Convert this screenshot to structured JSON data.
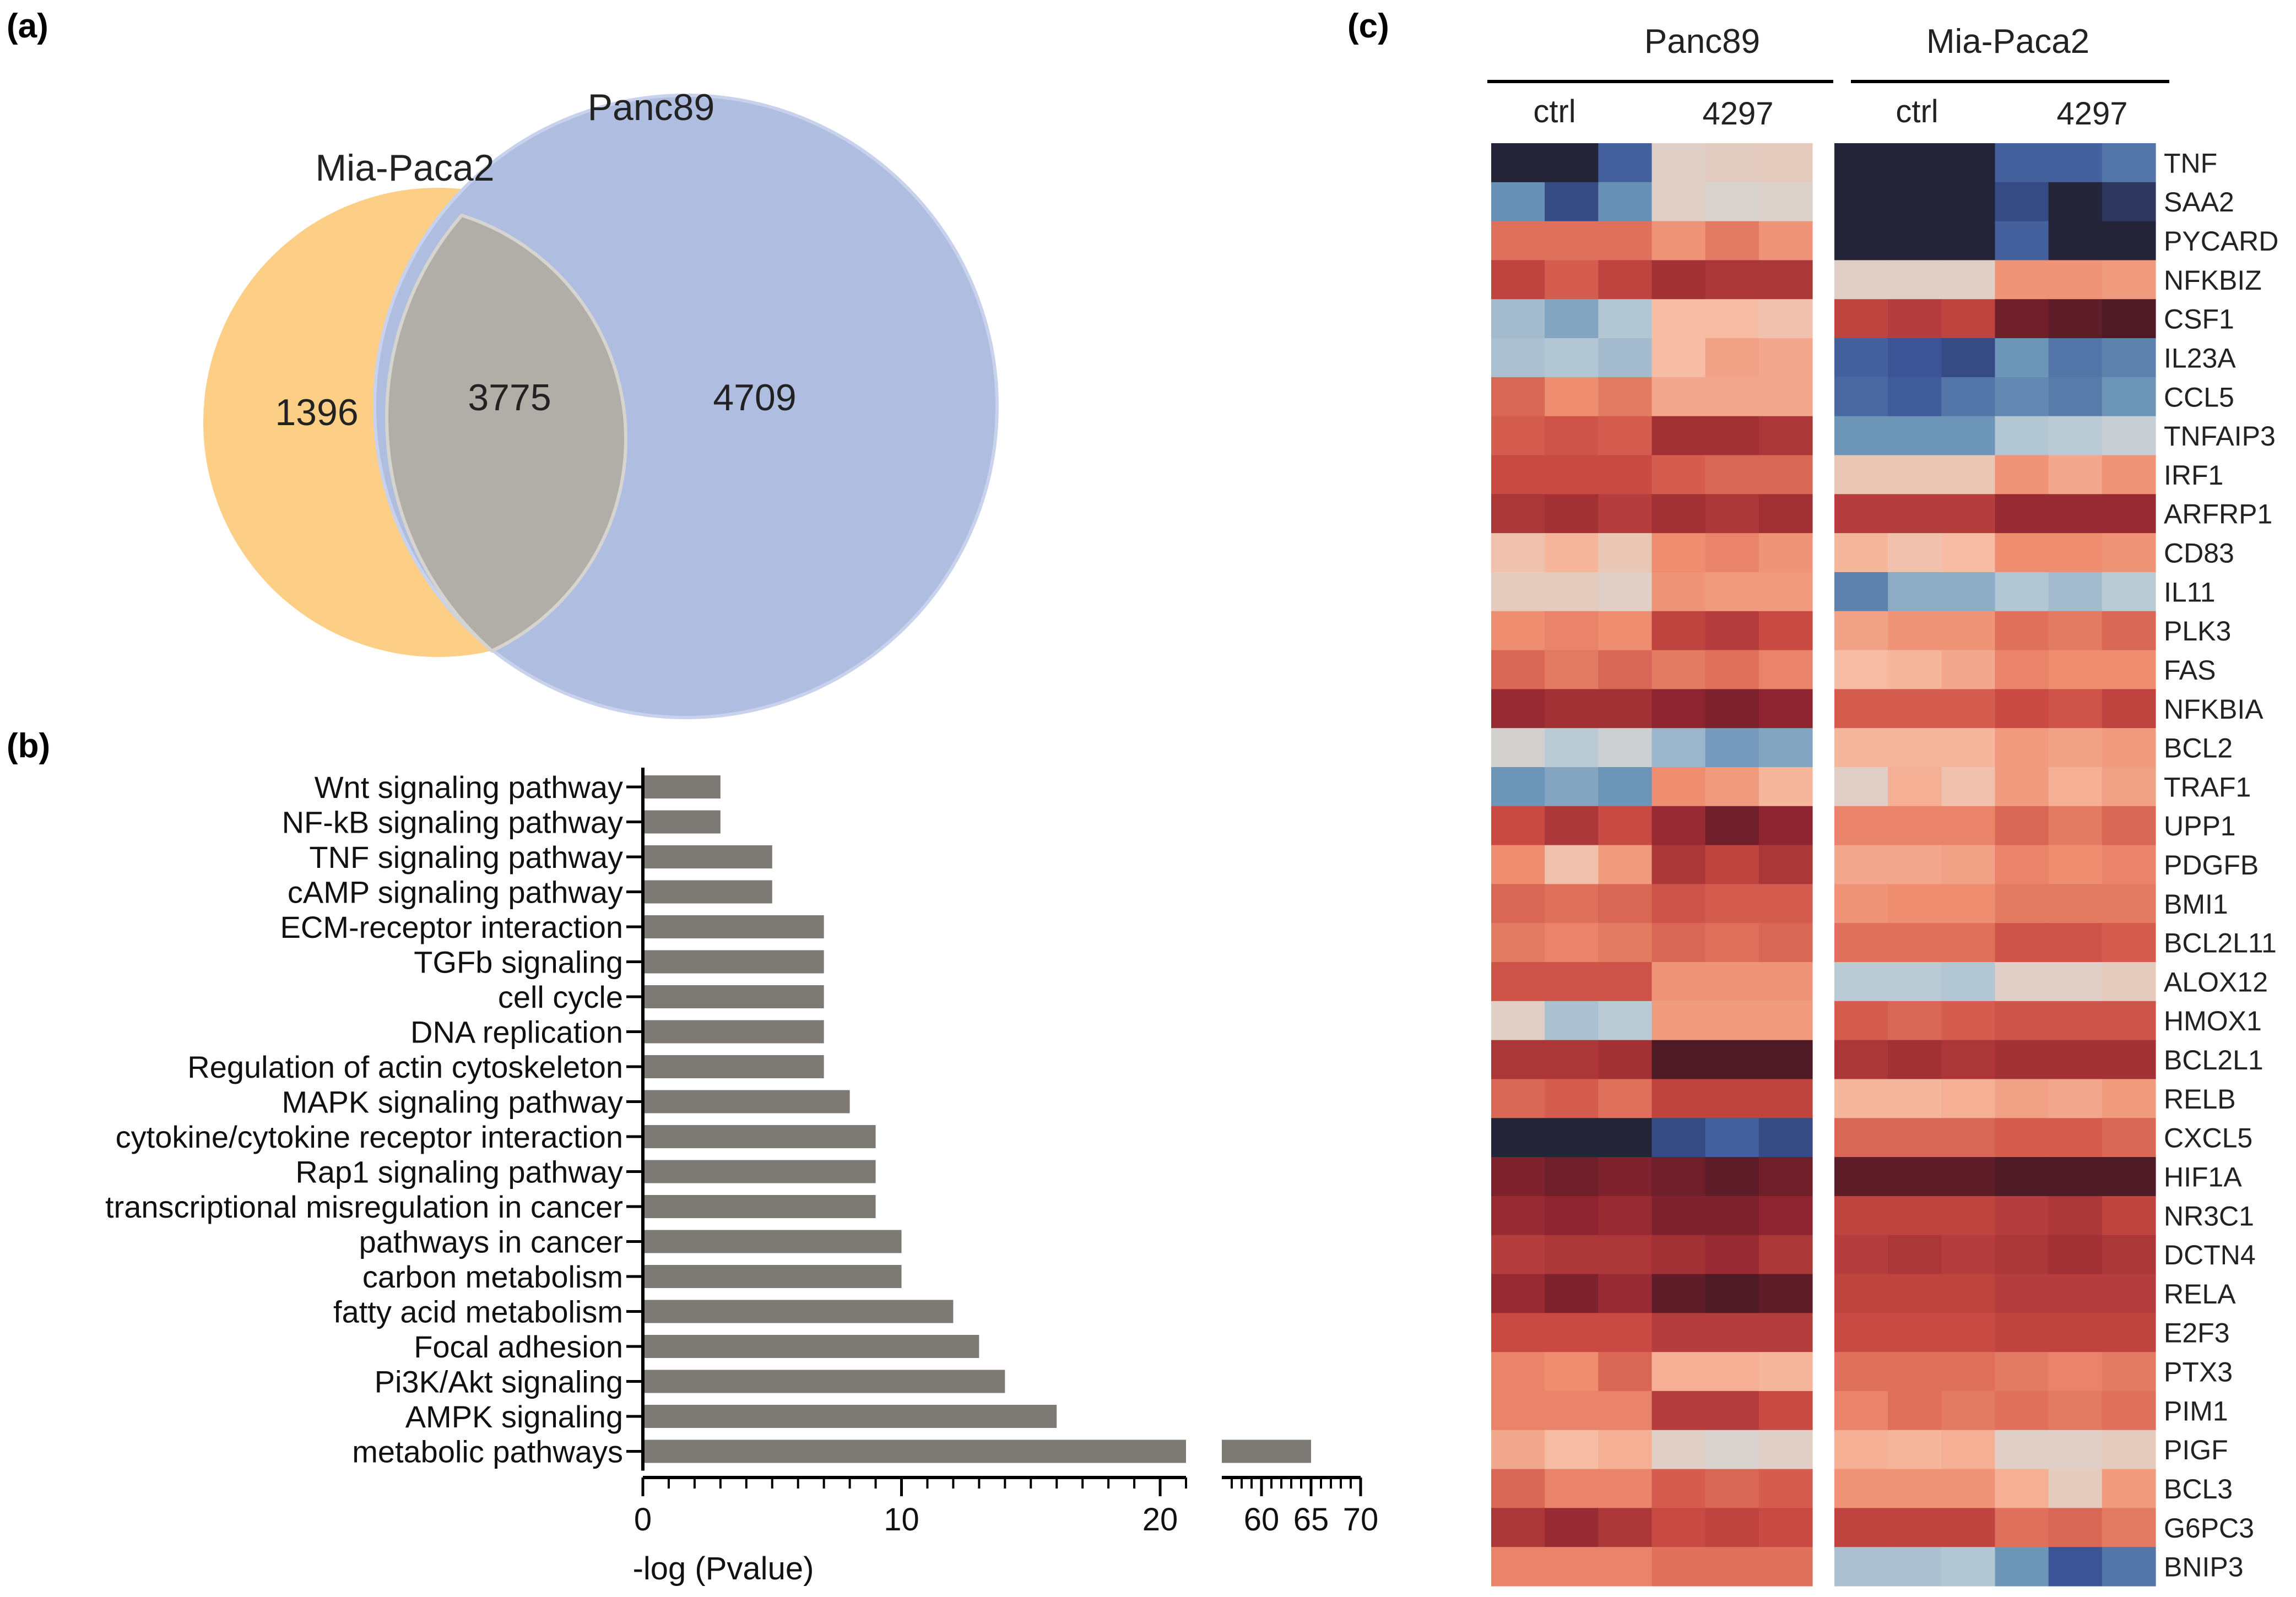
{
  "panel_labels": {
    "a": "(a)",
    "b": "(b)",
    "c": "(c)"
  },
  "chart_data": [
    {
      "type": "venn",
      "sets": [
        {
          "name": "Mia-Paca2",
          "color": "#FDCE85",
          "only": "1396"
        },
        {
          "name": "Panc89",
          "color": "#AFBEE0",
          "only": "4709"
        }
      ],
      "intersection": "3775",
      "intersection_color": "#B0AEA6"
    },
    {
      "type": "bar",
      "orientation": "horizontal",
      "bar_color": "#7D7974",
      "categories": [
        "Wnt signaling pathway",
        "NF-kB signaling pathway",
        "TNF signaling pathway",
        "cAMP signaling pathway",
        "ECM-receptor interaction",
        "TGFb signaling",
        "cell cycle",
        "DNA replication",
        "Regulation of actin cytoskeleton",
        "MAPK signaling pathway",
        "cytokine/cytokine receptor interaction",
        "Rap1 signaling pathway",
        "transcriptional misregulation in cancer",
        "pathways in cancer",
        "carbon metabolism",
        "fatty acid metabolism",
        "Focal adhesion",
        "Pi3K/Akt signaling",
        "AMPK signaling",
        "metabolic pathways"
      ],
      "values": [
        3,
        3,
        5,
        5,
        7,
        7,
        7,
        7,
        7,
        8,
        9,
        9,
        9,
        10,
        10,
        12,
        13,
        14,
        16,
        65
      ],
      "xlabel": "-log (Pvalue)",
      "x_segments": [
        {
          "range": [
            0,
            21
          ],
          "ticks": [
            "0",
            "10",
            "20"
          ],
          "tick_values": [
            0,
            10,
            20
          ]
        },
        {
          "range": [
            56,
            70
          ],
          "ticks": [
            "60",
            "65",
            "70"
          ],
          "tick_values": [
            60,
            65,
            70
          ]
        }
      ],
      "axis_break": [
        21,
        56
      ]
    },
    {
      "type": "heatmap",
      "groups": [
        {
          "name": "Panc89",
          "conditions": [
            "ctrl",
            "4297"
          ]
        },
        {
          "name": "Mia-Paca2",
          "conditions": [
            "ctrl",
            "4297"
          ]
        }
      ],
      "genes": [
        "TNF",
        "SAA2",
        "PYCARD",
        "NFKBIZ",
        "CSF1",
        "IL23A",
        "CCL5",
        "TNFAIP3",
        "IRF1",
        "ARFRP1",
        "CD83",
        "IL11",
        "PLK3",
        "FAS",
        "NFKBIA",
        "BCL2",
        "TRAF1",
        "UPP1",
        "PDGFB",
        "BMI1",
        "BCL2L11",
        "ALOX12",
        "HMOX1",
        "BCL2L1",
        "RELB",
        "CXCL5",
        "HIF1A",
        "NR3C1",
        "DCTN4",
        "RELA",
        "E2F3",
        "PTX3",
        "PIM1",
        "PIGF",
        "BCL3",
        "G6PC3",
        "BNIP3"
      ],
      "color_scale": {
        "min": -3,
        "max": 3,
        "stops": [
          {
            "v": -3,
            "c": "#242438"
          },
          {
            "v": -2.5,
            "c": "#3A5496"
          },
          {
            "v": -1.5,
            "c": "#6D95B8"
          },
          {
            "v": -0.5,
            "c": "#BACBD6"
          },
          {
            "v": 0,
            "c": "#D9D3CF"
          },
          {
            "v": 0.5,
            "c": "#F6BDA4"
          },
          {
            "v": 1.2,
            "c": "#EE8D6F"
          },
          {
            "v": 1.9,
            "c": "#C94A43"
          },
          {
            "v": 2.5,
            "c": "#8E2430"
          },
          {
            "v": 3,
            "c": "#3E1822"
          }
        ]
      },
      "matrix_panc89": [
        [
          -3,
          -3,
          -2.3,
          0.1,
          0.15,
          0.2
        ],
        [
          -1.6,
          -2.6,
          -1.6,
          0.1,
          0.0,
          0.05
        ],
        [
          1.5,
          1.5,
          1.5,
          1.1,
          1.4,
          1.1
        ],
        [
          2.0,
          1.7,
          2.0,
          2.3,
          2.2,
          2.2
        ],
        [
          -0.8,
          -1.2,
          -0.6,
          0.5,
          0.5,
          0.4
        ],
        [
          -0.7,
          -0.6,
          -0.8,
          0.5,
          0.9,
          0.8
        ],
        [
          1.6,
          1.2,
          1.4,
          0.8,
          0.8,
          0.8
        ],
        [
          1.7,
          1.8,
          1.7,
          2.3,
          2.3,
          2.2
        ],
        [
          1.9,
          1.9,
          1.9,
          1.7,
          1.6,
          1.6
        ],
        [
          2.2,
          2.3,
          2.1,
          2.3,
          2.2,
          2.3
        ],
        [
          0.4,
          0.6,
          0.3,
          1.2,
          1.3,
          1.1
        ],
        [
          0.2,
          0.2,
          0.1,
          1.1,
          1.0,
          1.0
        ],
        [
          1.2,
          1.3,
          1.2,
          2.0,
          2.1,
          1.9
        ],
        [
          1.6,
          1.4,
          1.6,
          1.4,
          1.5,
          1.3
        ],
        [
          2.4,
          2.3,
          2.3,
          2.5,
          2.6,
          2.5
        ],
        [
          -0.1,
          -0.5,
          -0.2,
          -0.9,
          -1.4,
          -1.2
        ],
        [
          -1.5,
          -1.2,
          -1.5,
          1.2,
          1.0,
          0.6
        ],
        [
          1.9,
          2.2,
          1.9,
          2.4,
          2.7,
          2.5
        ],
        [
          1.2,
          0.4,
          1.0,
          2.2,
          2.0,
          2.2
        ],
        [
          1.6,
          1.5,
          1.6,
          1.8,
          1.7,
          1.7
        ],
        [
          1.4,
          1.3,
          1.4,
          1.6,
          1.5,
          1.6
        ],
        [
          1.8,
          1.8,
          1.8,
          1.1,
          1.1,
          1.1
        ],
        [
          0.1,
          -0.7,
          -0.5,
          1.0,
          1.0,
          1.0
        ],
        [
          2.2,
          2.2,
          2.3,
          2.9,
          2.9,
          2.9
        ],
        [
          1.6,
          1.7,
          1.5,
          2.0,
          2.0,
          2.0
        ],
        [
          -3,
          -3,
          -3,
          -2.6,
          -2.3,
          -2.6
        ],
        [
          2.6,
          2.7,
          2.6,
          2.7,
          2.8,
          2.7
        ],
        [
          2.4,
          2.5,
          2.4,
          2.6,
          2.6,
          2.5
        ],
        [
          2.1,
          2.2,
          2.2,
          2.3,
          2.4,
          2.2
        ],
        [
          2.4,
          2.6,
          2.4,
          2.8,
          2.9,
          2.8
        ],
        [
          1.9,
          1.9,
          1.9,
          2.1,
          2.1,
          2.1
        ],
        [
          1.3,
          1.2,
          1.6,
          0.7,
          0.7,
          0.6
        ],
        [
          1.3,
          1.3,
          1.3,
          2.1,
          2.1,
          1.9
        ],
        [
          0.8,
          0.5,
          0.7,
          0.1,
          0.0,
          0.1
        ],
        [
          1.6,
          1.3,
          1.3,
          1.7,
          1.6,
          1.7
        ],
        [
          2.2,
          2.4,
          2.2,
          1.9,
          2.0,
          1.9
        ],
        [
          1.3,
          1.3,
          1.3,
          1.5,
          1.5,
          1.5
        ]
      ],
      "matrix_miapaca2": [
        [
          -3,
          -3,
          -3,
          -2.3,
          -2.3,
          -2.0
        ],
        [
          -3,
          -3,
          -3,
          -2.6,
          -3,
          -2.8
        ],
        [
          -3,
          -3,
          -3,
          -2.3,
          -3,
          -3
        ],
        [
          0.1,
          0.1,
          0.1,
          1.1,
          1.1,
          1.0
        ],
        [
          2.0,
          2.1,
          2.0,
          2.7,
          2.8,
          2.9
        ],
        [
          -2.3,
          -2.5,
          -2.6,
          -1.5,
          -2.0,
          -1.8
        ],
        [
          -2.2,
          -2.4,
          -2.0,
          -1.7,
          -1.9,
          -1.5
        ],
        [
          -1.5,
          -1.5,
          -1.5,
          -0.6,
          -0.5,
          -0.3
        ],
        [
          0.3,
          0.3,
          0.3,
          1.1,
          0.8,
          1.1
        ],
        [
          2.1,
          2.1,
          2.1,
          2.4,
          2.4,
          2.4
        ],
        [
          0.6,
          0.4,
          0.5,
          1.2,
          1.2,
          1.1
        ],
        [
          -1.8,
          -1.1,
          -1.1,
          -0.6,
          -0.8,
          -0.5
        ],
        [
          0.9,
          1.1,
          1.1,
          1.5,
          1.4,
          1.6
        ],
        [
          0.5,
          0.6,
          0.8,
          1.3,
          1.2,
          1.2
        ],
        [
          1.7,
          1.7,
          1.7,
          1.9,
          1.8,
          2.0
        ],
        [
          0.6,
          0.6,
          0.6,
          1.0,
          0.9,
          1.0
        ],
        [
          0.1,
          0.7,
          0.4,
          1.0,
          0.7,
          0.9
        ],
        [
          1.3,
          1.3,
          1.3,
          1.6,
          1.4,
          1.6
        ],
        [
          0.8,
          0.8,
          0.9,
          1.3,
          1.2,
          1.3
        ],
        [
          1.1,
          1.2,
          1.2,
          1.4,
          1.4,
          1.4
        ],
        [
          1.5,
          1.5,
          1.5,
          1.8,
          1.8,
          1.7
        ],
        [
          -0.5,
          -0.5,
          -0.6,
          0.1,
          0.1,
          0.2
        ],
        [
          1.7,
          1.6,
          1.7,
          1.8,
          1.8,
          1.8
        ],
        [
          2.2,
          2.3,
          2.2,
          2.3,
          2.3,
          2.3
        ],
        [
          0.6,
          0.6,
          0.7,
          0.9,
          0.8,
          1.0
        ],
        [
          1.6,
          1.6,
          1.6,
          1.7,
          1.7,
          1.6
        ],
        [
          2.8,
          2.8,
          2.8,
          2.9,
          2.9,
          2.9
        ],
        [
          2.0,
          2.0,
          2.0,
          2.1,
          2.2,
          2.0
        ],
        [
          2.1,
          2.2,
          2.1,
          2.2,
          2.3,
          2.2
        ],
        [
          2.0,
          2.0,
          2.0,
          2.1,
          2.1,
          2.1
        ],
        [
          1.9,
          1.9,
          1.9,
          2.0,
          2.0,
          2.0
        ],
        [
          1.5,
          1.5,
          1.5,
          1.4,
          1.3,
          1.4
        ],
        [
          1.3,
          1.5,
          1.4,
          1.5,
          1.4,
          1.5
        ],
        [
          0.7,
          0.6,
          0.7,
          0.1,
          0.1,
          0.2
        ],
        [
          1.1,
          1.1,
          1.1,
          0.7,
          0.2,
          1.0
        ],
        [
          2.0,
          2.0,
          2.0,
          1.5,
          1.6,
          1.4
        ],
        [
          -0.7,
          -0.7,
          -0.6,
          -1.5,
          -2.5,
          -2.0
        ]
      ]
    }
  ]
}
